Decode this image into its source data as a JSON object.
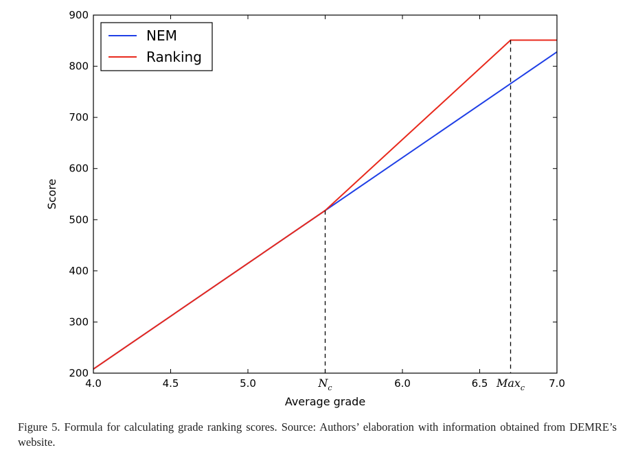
{
  "chart_data": {
    "type": "line",
    "xlabel": "Average grade",
    "ylabel": "Score",
    "xlim": [
      4.0,
      7.0
    ],
    "ylim": [
      200,
      900
    ],
    "xticks": [
      "4.0",
      "4.5",
      "5.0",
      "5.5",
      "6.0",
      "6.5",
      "7.0"
    ],
    "yticks": [
      "200",
      "300",
      "400",
      "500",
      "600",
      "700",
      "800",
      "900"
    ],
    "hidden_xticks": [
      "5.5"
    ],
    "grid": false,
    "legend_position": "top-left",
    "series": [
      {
        "name": "NEM",
        "color": "#1f3fe6",
        "x": [
          4.0,
          5.5,
          7.0
        ],
        "y": [
          208,
          518,
          828
        ]
      },
      {
        "name": "Ranking",
        "color": "#e8291c",
        "x": [
          4.0,
          5.5,
          6.7,
          7.0
        ],
        "y": [
          208,
          518,
          851,
          851
        ]
      }
    ],
    "annotations": [
      {
        "type": "vline",
        "x": 5.5,
        "y": 518,
        "label_main": "N",
        "label_sub": "c"
      },
      {
        "type": "vline",
        "x": 6.7,
        "y": 851,
        "label_main": "Max",
        "label_sub": "c"
      }
    ]
  },
  "caption": "Figure 5.  Formula for calculating grade ranking scores.  Source: Authors’ elaboration with information obtained from DEMRE’s website."
}
